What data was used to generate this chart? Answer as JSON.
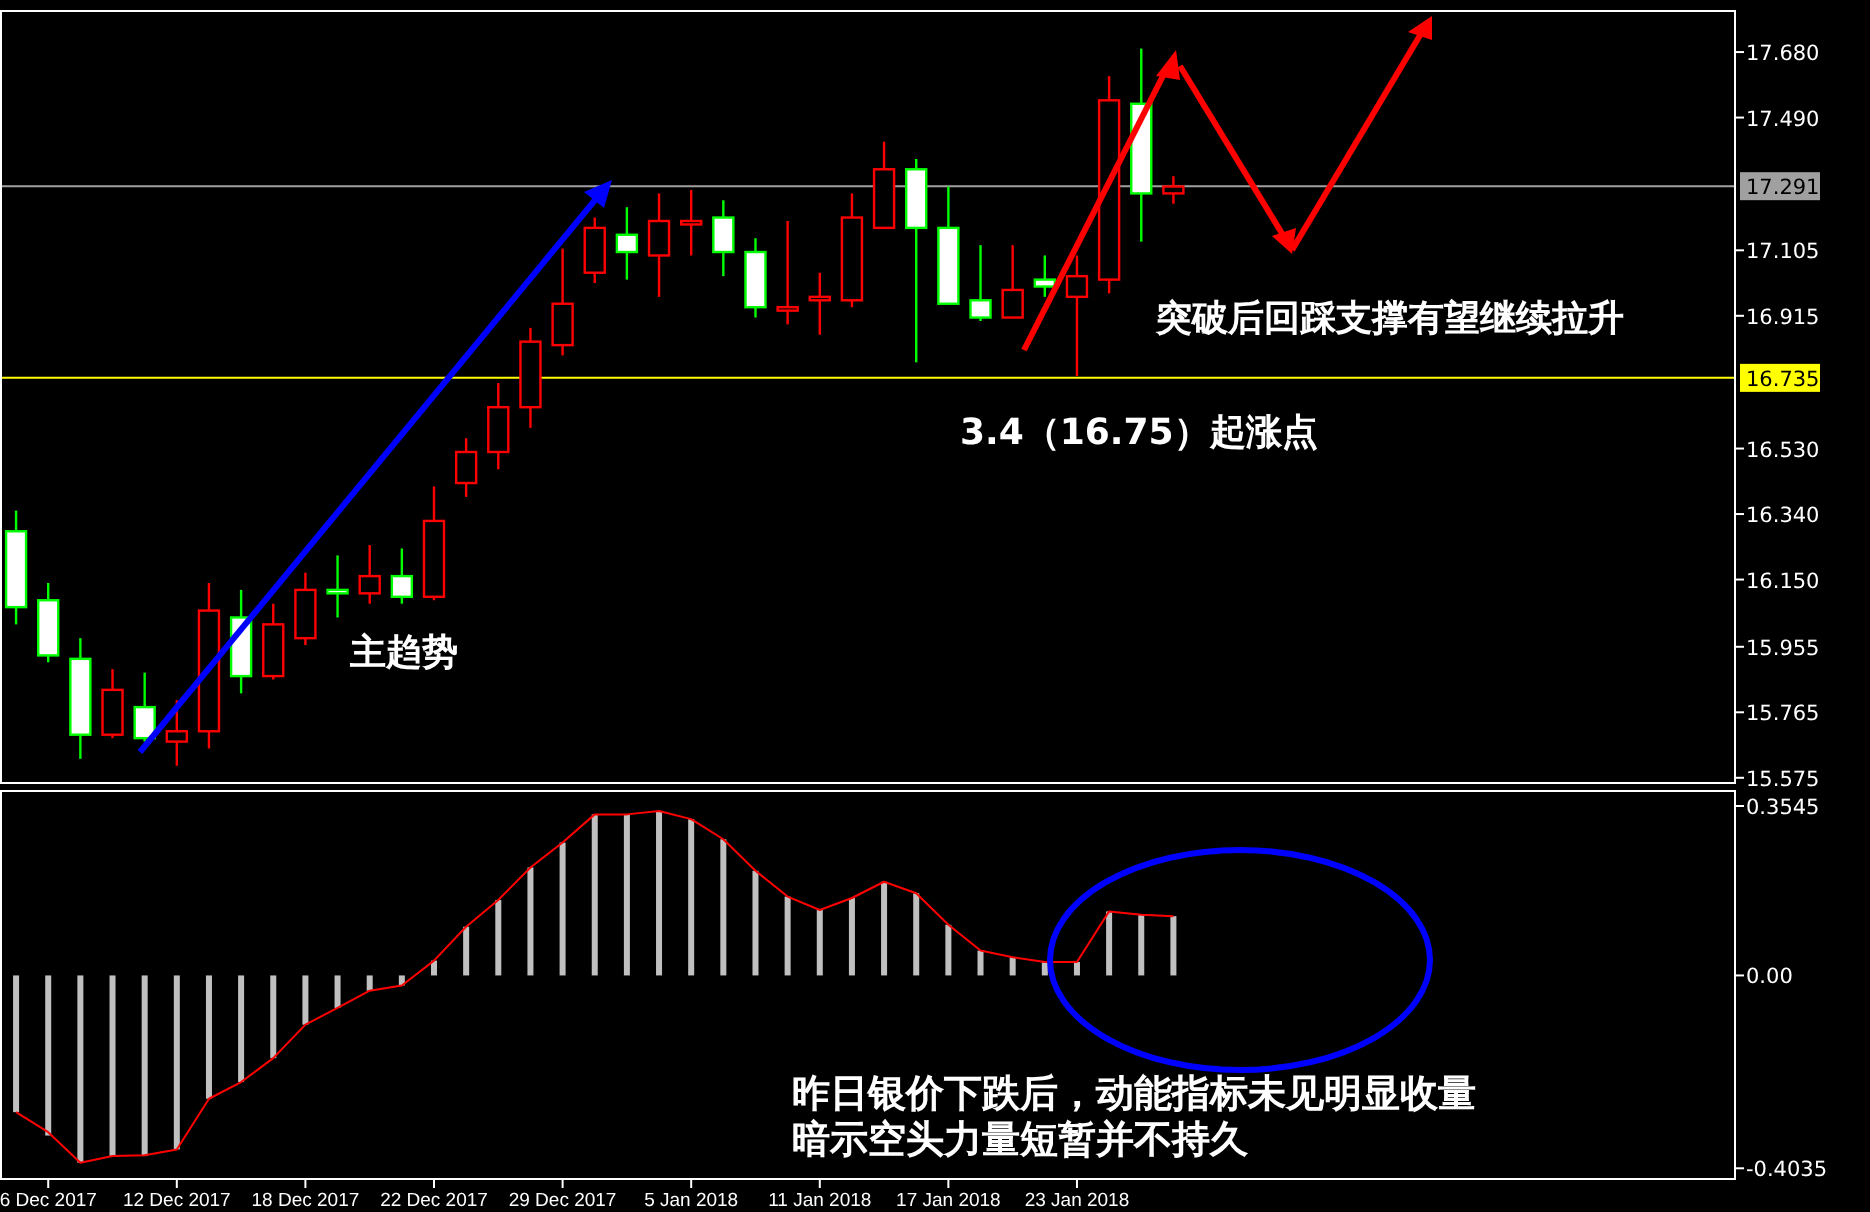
{
  "chart_data": [
    {
      "type": "candlestick",
      "categories": [
        null,
        null,
        null,
        null,
        null,
        null,
        null,
        null,
        null,
        null,
        null,
        null,
        null,
        null,
        null,
        null,
        null,
        null,
        null,
        null,
        null,
        null,
        null,
        null,
        null,
        null,
        null,
        null,
        null,
        null,
        null,
        null,
        null,
        null,
        null,
        null,
        null,
        null,
        null,
        null,
        null,
        null,
        null,
        null,
        null,
        null,
        null,
        null,
        null,
        null,
        null,
        null,
        null,
        null
      ],
      "ohlc": [
        [
          16.29,
          16.35,
          16.02,
          16.07
        ],
        [
          16.09,
          16.14,
          15.91,
          15.93
        ],
        [
          15.92,
          15.98,
          15.63,
          15.7
        ],
        [
          15.7,
          15.89,
          15.69,
          15.83
        ],
        [
          15.78,
          15.88,
          15.68,
          15.69
        ],
        [
          15.68,
          15.8,
          15.61,
          15.71
        ],
        [
          15.71,
          16.14,
          15.66,
          16.06
        ],
        [
          16.04,
          16.12,
          15.82,
          15.87
        ],
        [
          15.87,
          16.08,
          15.86,
          16.02
        ],
        [
          15.98,
          16.17,
          15.96,
          16.12
        ],
        [
          16.12,
          16.22,
          16.04,
          16.11
        ],
        [
          16.11,
          16.25,
          16.08,
          16.16
        ],
        [
          16.16,
          16.24,
          16.08,
          16.1
        ],
        [
          16.1,
          16.42,
          16.09,
          16.32
        ],
        [
          16.43,
          16.56,
          16.39,
          16.52
        ],
        [
          16.52,
          16.72,
          16.47,
          16.65
        ],
        [
          16.65,
          16.88,
          16.59,
          16.84
        ],
        [
          16.83,
          17.11,
          16.8,
          16.95
        ],
        [
          17.04,
          17.2,
          17.01,
          17.17
        ],
        [
          17.15,
          17.23,
          17.02,
          17.1
        ],
        [
          17.09,
          17.27,
          16.97,
          17.19
        ],
        [
          17.18,
          17.28,
          17.09,
          17.19
        ],
        [
          17.2,
          17.25,
          17.03,
          17.1
        ],
        [
          17.1,
          17.14,
          16.91,
          16.94
        ],
        [
          16.93,
          17.19,
          16.89,
          16.94
        ],
        [
          16.96,
          17.04,
          16.86,
          16.97
        ],
        [
          16.96,
          17.27,
          16.94,
          17.2
        ],
        [
          17.17,
          17.42,
          17.17,
          17.34
        ],
        [
          17.34,
          17.37,
          16.78,
          17.17
        ],
        [
          17.17,
          17.29,
          16.95,
          16.95
        ],
        [
          16.96,
          17.12,
          16.9,
          16.91
        ],
        [
          16.91,
          17.12,
          16.91,
          16.99
        ],
        [
          17.02,
          17.09,
          16.97,
          17.0
        ],
        [
          16.97,
          17.09,
          16.74,
          17.03
        ],
        [
          17.02,
          17.61,
          16.98,
          17.54
        ],
        [
          17.53,
          17.69,
          17.13,
          17.27
        ],
        [
          17.27,
          17.32,
          17.24,
          17.29
        ],
        null,
        null,
        null,
        null,
        null,
        null,
        null,
        null,
        null,
        null,
        null,
        null,
        null,
        null,
        null,
        null,
        null
      ],
      "colors": [
        "#00ff00",
        "#00ff00",
        "#00ff00",
        "#ff0000",
        "#00ff00",
        "#ff0000",
        "#ff0000",
        "#00ff00",
        "#ff0000",
        "#ff0000",
        "#00ff00",
        "#ff0000",
        "#00ff00",
        "#ff0000",
        "#ff0000",
        "#ff0000",
        "#ff0000",
        "#ff0000",
        "#ff0000",
        "#00ff00",
        "#ff0000",
        "#ff0000",
        "#00ff00",
        "#00ff00",
        "#ff0000",
        "#ff0000",
        "#ff0000",
        "#ff0000",
        "#00ff00",
        "#00ff00",
        "#00ff00",
        "#ff0000",
        "#00ff00",
        "#ff0000",
        "#ff0000",
        "#00ff00",
        "#ff0000",
        null,
        null,
        null,
        null,
        null,
        null,
        null,
        null,
        null,
        null,
        null,
        null,
        null,
        null,
        null,
        null,
        null
      ],
      "ylim": [
        15.557,
        17.802
      ],
      "yticks": [
        {
          "value": 17.68,
          "label": "17.680"
        },
        {
          "value": 17.49,
          "label": "17.490"
        },
        {
          "value": 17.105,
          "label": "17.105"
        },
        {
          "value": 16.915,
          "label": "16.915"
        },
        {
          "value": 16.53,
          "label": "16.530"
        },
        {
          "value": 16.34,
          "label": "16.340"
        },
        {
          "value": 16.15,
          "label": "16.150"
        },
        {
          "value": 15.955,
          "label": "15.955"
        },
        {
          "value": 15.765,
          "label": "15.765"
        },
        {
          "value": 15.575,
          "label": "15.575"
        }
      ],
      "ref_lines": [
        {
          "axis": "y",
          "value": 17.291,
          "label": "17.291",
          "color": "#a0a0a0"
        },
        {
          "axis": "y",
          "value": 16.735,
          "label": "16.735",
          "color": "#ffff00"
        }
      ],
      "annotations": [
        "主趋势",
        "3.4（16.75）起涨点",
        "突破后回踩支撑有望继续拉升"
      ],
      "tick_labels": "y"
    },
    {
      "type": "bar",
      "categories": [
        null,
        "6 Dec 2017",
        null,
        null,
        null,
        "12 Dec 2017",
        null,
        null,
        null,
        "18 Dec 2017",
        null,
        null,
        null,
        "22 Dec 2017",
        null,
        null,
        null,
        "29 Dec 2017",
        null,
        null,
        null,
        "5 Jan 2018",
        null,
        null,
        null,
        "11 Jan 2018",
        null,
        null,
        null,
        "17 Jan 2018",
        null,
        null,
        null,
        "23 Jan 2018",
        null,
        null,
        null,
        null,
        null,
        null,
        null,
        null,
        null,
        null,
        null,
        null,
        null,
        null,
        null,
        null,
        null,
        null,
        null,
        null
      ],
      "series": [
        {
          "type": "bar",
          "color": "#c0c0c0",
          "values": [
            -0.286,
            -0.335,
            -0.392,
            -0.378,
            -0.378,
            -0.364,
            -0.258,
            -0.223,
            -0.173,
            -0.103,
            -0.068,
            -0.032,
            -0.021,
            0.031,
            0.102,
            0.158,
            0.226,
            0.278,
            0.337,
            0.337,
            0.344,
            0.327,
            0.285,
            0.219,
            0.165,
            0.137,
            0.162,
            0.196,
            0.172,
            0.106,
            0.052,
            0.038,
            0.028,
            0.028,
            0.134,
            0.127,
            0.124,
            null,
            null,
            null,
            null,
            null,
            null,
            null,
            null,
            null,
            null,
            null,
            null,
            null,
            null,
            null,
            null,
            null
          ]
        },
        {
          "type": "line",
          "color": "#ff0000",
          "values": [
            -0.286,
            -0.328,
            -0.392,
            -0.378,
            -0.376,
            -0.364,
            -0.258,
            -0.223,
            -0.173,
            -0.103,
            -0.068,
            -0.032,
            -0.021,
            0.031,
            0.102,
            0.158,
            0.226,
            0.278,
            0.337,
            0.337,
            0.344,
            0.327,
            0.285,
            0.219,
            0.165,
            0.137,
            0.162,
            0.196,
            0.172,
            0.106,
            0.052,
            0.038,
            0.028,
            0.028,
            0.134,
            0.127,
            0.124,
            null,
            null,
            null,
            null,
            null,
            null,
            null,
            null,
            null,
            null,
            null,
            null,
            null,
            null,
            null,
            null,
            null
          ]
        }
      ],
      "ylim": [
        -0.428,
        0.388
      ],
      "yticks": [
        0.3545,
        {
          "value": 0,
          "label": "0.00"
        },
        -0.4035
      ],
      "annotations": [
        "昨日银价下跌后，动能指标未见明显收量",
        "暗示空头力量短暂并不持久"
      ]
    }
  ]
}
